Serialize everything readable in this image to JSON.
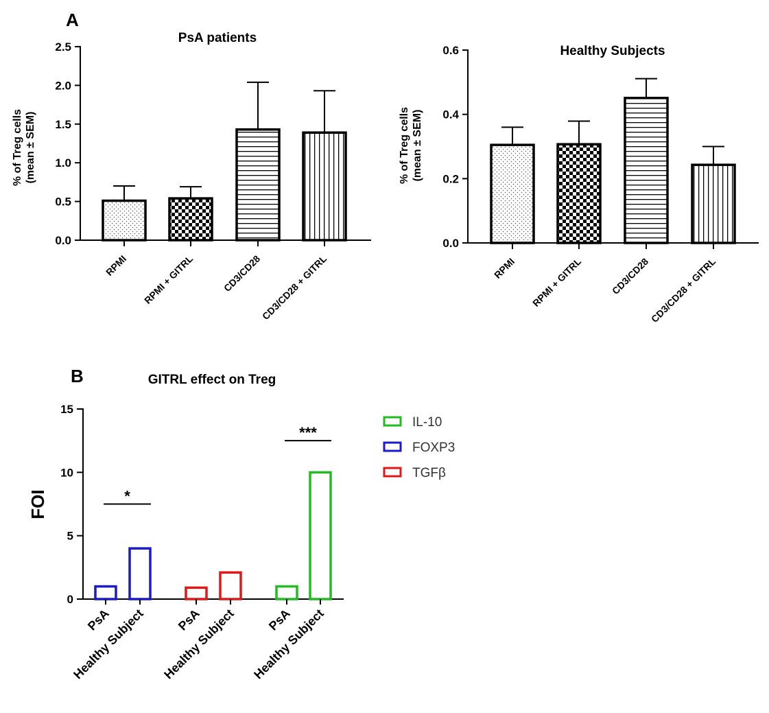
{
  "panels": {
    "a": "A",
    "b": "B"
  },
  "chart_data": [
    {
      "type": "bar",
      "id": "psa",
      "title": "PsA patients",
      "ylabel_line1": "% of Treg cells",
      "ylabel_line2": "(mean ± SEM)",
      "categories": [
        "RPMI",
        "RPMI + GITRL",
        "CD3/CD28",
        "CD3/CD28 + GITRL"
      ],
      "values": [
        0.51,
        0.54,
        1.43,
        1.39
      ],
      "errors": [
        0.19,
        0.15,
        0.61,
        0.54
      ],
      "patterns": [
        "dots",
        "checker",
        "hlines",
        "vlines"
      ],
      "ylim": [
        0,
        2.5
      ],
      "yticks": [
        0,
        0.5,
        1.0,
        1.5,
        2.0,
        2.5
      ],
      "ytick_labels": [
        "0.0",
        "0.5",
        "1.0",
        "1.5",
        "2.0",
        "2.5"
      ]
    },
    {
      "type": "bar",
      "id": "hs",
      "title": "Healthy Subjects",
      "ylabel_line1": "% of Treg cells",
      "ylabel_line2": "(mean ± SEM)",
      "categories": [
        "RPMI",
        "RPMI + GITRL",
        "CD3/CD28",
        "CD3/CD28 + GITRL"
      ],
      "values": [
        0.305,
        0.307,
        0.451,
        0.243
      ],
      "errors": [
        0.055,
        0.072,
        0.06,
        0.057
      ],
      "patterns": [
        "dots",
        "checker",
        "hlines",
        "vlines"
      ],
      "ylim": [
        0,
        0.6
      ],
      "yticks": [
        0,
        0.2,
        0.4,
        0.6
      ],
      "ytick_labels": [
        "0.0",
        "0.2",
        "0.4",
        "0.6"
      ]
    },
    {
      "type": "bar",
      "id": "gitrl",
      "title": "GITRL effect on Treg",
      "ylabel": "FOI",
      "categories": [
        "PsA",
        "Healthy Subject",
        "PsA",
        "Healthy Subject",
        "PsA",
        "Healthy Subject"
      ],
      "values": [
        1.0,
        4.0,
        0.9,
        2.1,
        1.0,
        10.0
      ],
      "bar_series": [
        "FOXP3",
        "FOXP3",
        "TGFβ",
        "TGFβ",
        "IL-10",
        "IL-10"
      ],
      "ylim": [
        0,
        15
      ],
      "yticks": [
        0,
        5,
        10,
        15
      ],
      "ytick_labels": [
        "0",
        "5",
        "10",
        "15"
      ],
      "legend": [
        {
          "name": "IL-10",
          "color": "#22bb22"
        },
        {
          "name": "FOXP3",
          "color": "#1a1acc"
        },
        {
          "name": "TGFβ",
          "color": "#e01818"
        }
      ],
      "significance": [
        {
          "label": "*",
          "from_bar": 0,
          "to_bar": 1,
          "y": 7.5
        },
        {
          "label": "***",
          "from_bar": 4,
          "to_bar": 5,
          "y": 12.5
        }
      ]
    }
  ]
}
